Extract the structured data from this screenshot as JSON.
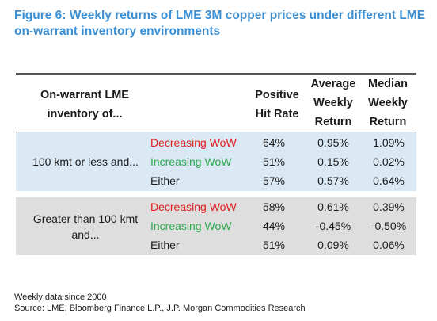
{
  "figure": {
    "title": "Figure 6: Weekly returns of LME 3M copper prices under different LME on-warrant inventory environments"
  },
  "colors": {
    "title": "#3d8fd1",
    "decreasing": "#e02020",
    "increasing": "#2fa84f",
    "group1_bg": "#dbe9f5",
    "group2_bg": "#dedede"
  },
  "table": {
    "headers": {
      "inventory_line1": "On-warrant LME",
      "inventory_line2": "inventory of...",
      "hit_line1": "Positive",
      "hit_line2": "Hit Rate",
      "avg_line1": "Average",
      "avg_line2": "Weekly",
      "avg_line3": "Return",
      "med_line1": "Median",
      "med_line2": "Weekly",
      "med_line3": "Return"
    },
    "groups": [
      {
        "label_line1": "100 kmt or less and...",
        "label_line2": "",
        "rows": [
          {
            "condition": "Decreasing WoW",
            "hit_rate": "64%",
            "avg": "0.95%",
            "median": "1.09%"
          },
          {
            "condition": "Increasing WoW",
            "hit_rate": "51%",
            "avg": "0.15%",
            "median": "0.02%"
          },
          {
            "condition": "Either",
            "hit_rate": "57%",
            "avg": "0.57%",
            "median": "0.64%"
          }
        ]
      },
      {
        "label_line1": "Greater than 100 kmt",
        "label_line2": "and...",
        "rows": [
          {
            "condition": "Decreasing WoW",
            "hit_rate": "58%",
            "avg": "0.61%",
            "median": "0.39%"
          },
          {
            "condition": "Increasing WoW",
            "hit_rate": "44%",
            "avg": "-0.45%",
            "median": "-0.50%"
          },
          {
            "condition": "Either",
            "hit_rate": "51%",
            "avg": "0.09%",
            "median": "0.06%"
          }
        ]
      }
    ]
  },
  "notes": {
    "line1": "Weekly data since 2000",
    "line2": "Source: LME, Bloomberg Finance L.P., J.P. Morgan Commodities Research"
  }
}
